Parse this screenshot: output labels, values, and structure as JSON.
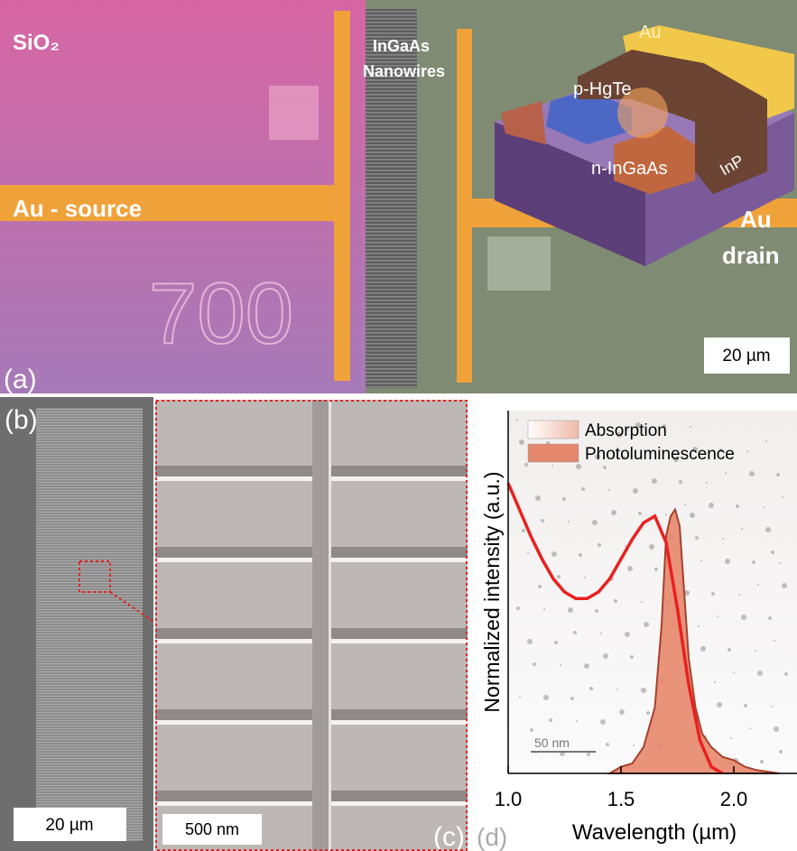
{
  "panels": {
    "a": {
      "label": "(a)",
      "sio2": "SiO₂",
      "nanowires": [
        "InGaAs",
        "Nanowires"
      ],
      "source": "Au - source",
      "marker": "700",
      "au_top": "Au",
      "p_layer": "p-HgTe",
      "n_layer": "n-InGaAs",
      "substrate": "InP",
      "drain": [
        "Au",
        "drain"
      ],
      "scale": "20 µm"
    },
    "b": {
      "label": "(b)",
      "scale": "20 µm"
    },
    "c": {
      "label": "(c)",
      "scale": "500 nm"
    },
    "d": {
      "label": "(d)",
      "inset_scale": "50 nm"
    }
  },
  "chart_data": {
    "type": "line",
    "xlabel": "Wavelength (µm)",
    "ylabel": "Normalized intensity (a.u.)",
    "xlim": [
      1.0,
      2.28
    ],
    "ylim": [
      0,
      1.1
    ],
    "xticks": [
      {
        "value": 1,
        "label": "1.0"
      },
      1.5,
      {
        "value": 2,
        "label": "2.0"
      }
    ],
    "legend": "upper right",
    "series": [
      {
        "name": "Absorption",
        "color": "#e8211f",
        "fill": false,
        "x": [
          1.0,
          1.05,
          1.1,
          1.15,
          1.2,
          1.25,
          1.3,
          1.35,
          1.4,
          1.45,
          1.5,
          1.55,
          1.6,
          1.65,
          1.7,
          1.75,
          1.8,
          1.85,
          1.9,
          1.95
        ],
        "values": [
          0.88,
          0.8,
          0.72,
          0.65,
          0.59,
          0.55,
          0.53,
          0.53,
          0.55,
          0.59,
          0.65,
          0.71,
          0.76,
          0.78,
          0.7,
          0.5,
          0.27,
          0.1,
          0.02,
          0.0
        ]
      },
      {
        "name": "Photoluminescence",
        "color": "#e5876c",
        "fill": true,
        "x": [
          1.45,
          1.5,
          1.55,
          1.6,
          1.65,
          1.68,
          1.7,
          1.72,
          1.74,
          1.76,
          1.78,
          1.8,
          1.83,
          1.86,
          1.9,
          1.95,
          2.0,
          2.05,
          2.1,
          2.2
        ],
        "values": [
          0.0,
          0.02,
          0.03,
          0.08,
          0.2,
          0.45,
          0.72,
          0.78,
          0.8,
          0.75,
          0.55,
          0.35,
          0.2,
          0.12,
          0.08,
          0.05,
          0.04,
          0.02,
          0.01,
          0.0
        ]
      }
    ]
  }
}
